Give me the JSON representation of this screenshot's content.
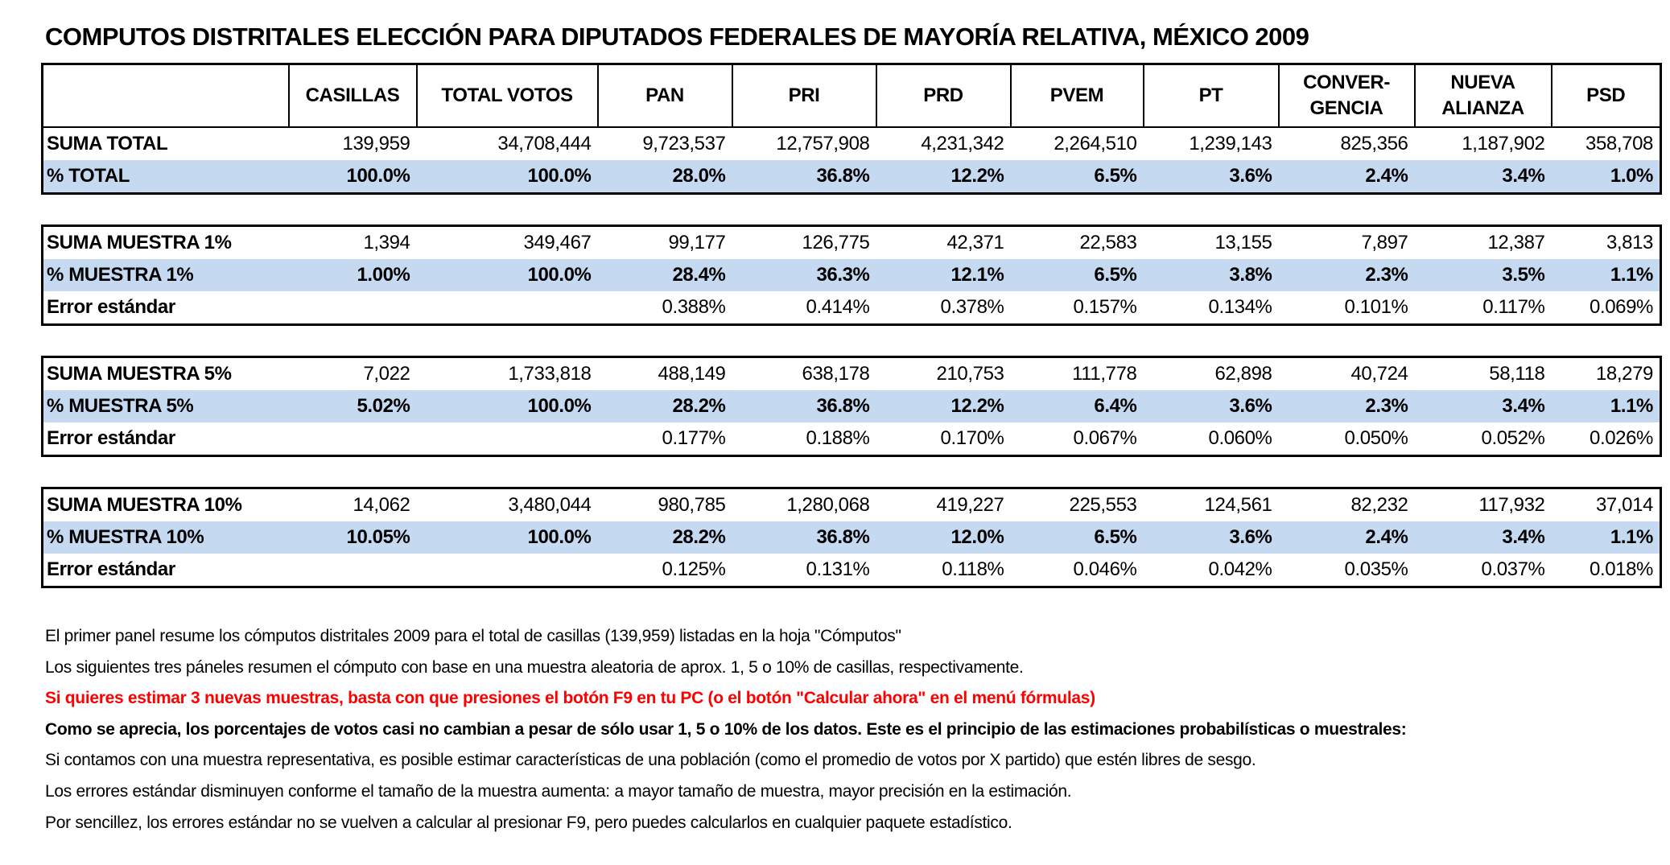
{
  "title": "COMPUTOS DISTRITALES ELECCIÓN PARA DIPUTADOS FEDERALES DE MAYORÍA RELATIVA, MÉXICO 2009",
  "columns": [
    "",
    "CASILLAS",
    "TOTAL VOTOS",
    "PAN",
    "PRI",
    "PRD",
    "PVEM",
    "PT",
    "CONVER-\nGENCIA",
    "NUEVA\nALIANZA",
    "PSD"
  ],
  "colors": {
    "highlight_row": "#c5d9f1",
    "red_note": "#ff0000"
  },
  "panels": [
    {
      "rows": [
        {
          "label": "SUMA TOTAL",
          "type": "sum",
          "values": [
            "139,959",
            "34,708,444",
            "9,723,537",
            "12,757,908",
            "4,231,342",
            "2,264,510",
            "1,239,143",
            "825,356",
            "1,187,902",
            "358,708"
          ]
        },
        {
          "label": "% TOTAL",
          "type": "pct",
          "values": [
            "100.0%",
            "100.0%",
            "28.0%",
            "36.8%",
            "12.2%",
            "6.5%",
            "3.6%",
            "2.4%",
            "3.4%",
            "1.0%"
          ]
        }
      ]
    },
    {
      "rows": [
        {
          "label": "SUMA MUESTRA 1%",
          "type": "sum",
          "values": [
            "1,394",
            "349,467",
            "99,177",
            "126,775",
            "42,371",
            "22,583",
            "13,155",
            "7,897",
            "12,387",
            "3,813"
          ]
        },
        {
          "label": "% MUESTRA 1%",
          "type": "pct",
          "values": [
            "1.00%",
            "100.0%",
            "28.4%",
            "36.3%",
            "12.1%",
            "6.5%",
            "3.8%",
            "2.3%",
            "3.5%",
            "1.1%"
          ]
        },
        {
          "label": "Error estándar",
          "type": "err",
          "values": [
            "",
            "",
            "0.388%",
            "0.414%",
            "0.378%",
            "0.157%",
            "0.134%",
            "0.101%",
            "0.117%",
            "0.069%"
          ]
        }
      ]
    },
    {
      "rows": [
        {
          "label": "SUMA MUESTRA 5%",
          "type": "sum",
          "values": [
            "7,022",
            "1,733,818",
            "488,149",
            "638,178",
            "210,753",
            "111,778",
            "62,898",
            "40,724",
            "58,118",
            "18,279"
          ]
        },
        {
          "label": "% MUESTRA 5%",
          "type": "pct",
          "values": [
            "5.02%",
            "100.0%",
            "28.2%",
            "36.8%",
            "12.2%",
            "6.4%",
            "3.6%",
            "2.3%",
            "3.4%",
            "1.1%"
          ]
        },
        {
          "label": "Error estándar",
          "type": "err",
          "values": [
            "",
            "",
            "0.177%",
            "0.188%",
            "0.170%",
            "0.067%",
            "0.060%",
            "0.050%",
            "0.052%",
            "0.026%"
          ]
        }
      ]
    },
    {
      "rows": [
        {
          "label": "SUMA MUESTRA 10%",
          "type": "sum",
          "values": [
            "14,062",
            "3,480,044",
            "980,785",
            "1,280,068",
            "419,227",
            "225,553",
            "124,561",
            "82,232",
            "117,932",
            "37,014"
          ]
        },
        {
          "label": "% MUESTRA 10%",
          "type": "pct",
          "values": [
            "10.05%",
            "100.0%",
            "28.2%",
            "36.8%",
            "12.0%",
            "6.5%",
            "3.6%",
            "2.4%",
            "3.4%",
            "1.1%"
          ]
        },
        {
          "label": "Error estándar",
          "type": "err",
          "values": [
            "",
            "",
            "0.125%",
            "0.131%",
            "0.118%",
            "0.046%",
            "0.042%",
            "0.035%",
            "0.037%",
            "0.018%"
          ]
        }
      ]
    }
  ],
  "notes": [
    {
      "text": "El primer panel resume los cómputos distritales 2009 para el total de casillas (139,959) listadas en la hoja \"Cómputos\"",
      "style": "normal"
    },
    {
      "text": "Los siguientes tres páneles resumen el cómputo con base en una muestra aleatoria de aprox. 1, 5 o 10%  de casillas, respectivamente.",
      "style": "normal"
    },
    {
      "text": "Si quieres estimar 3 nuevas muestras, basta con que presiones el botón F9 en tu PC (o el botón \"Calcular ahora\" en el menú fórmulas)",
      "style": "red"
    },
    {
      "text": "Como se aprecia, los porcentajes de votos casi no cambian a pesar de sólo usar 1, 5 o 10% de los datos. Este es el principio de las estimaciones probabilísticas o muestrales:",
      "style": "bold"
    },
    {
      "text": "Si contamos con una muestra representativa, es posible estimar características de una población (como el promedio de votos por X partido) que estén libres de sesgo.",
      "style": "normal"
    },
    {
      "text": "Los errores estándar disminuyen conforme el tamaño de la muestra aumenta: a mayor tamaño de muestra, mayor precisión en la estimación.",
      "style": "normal"
    },
    {
      "text": "Por sencillez, los errores estándar no se vuelven a calcular al presionar F9, pero puedes calcularlos en cualquier paquete estadístico.",
      "style": "normal"
    }
  ]
}
